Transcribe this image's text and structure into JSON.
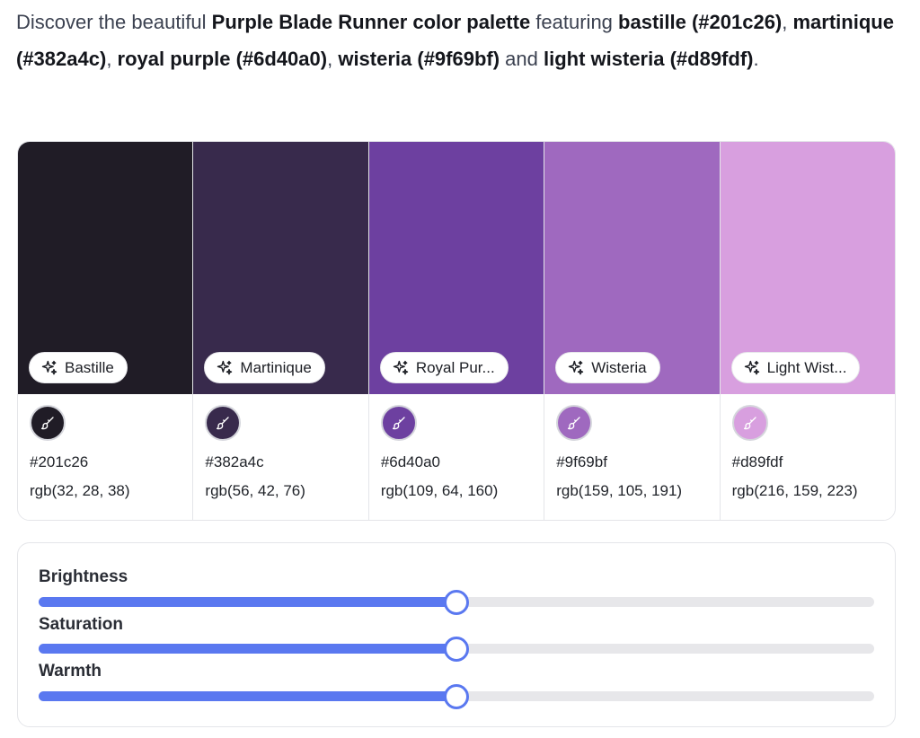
{
  "intro": {
    "t1": "Discover the beautiful ",
    "b1": "Purple Blade Runner color palette",
    "t2": " featuring ",
    "b2": "bastille (#201c26)",
    "t3": ", ",
    "b3": "martinique (#382a4c)",
    "t4": ", ",
    "b4": "royal purple (#6d40a0)",
    "t5": ", ",
    "b5": "wisteria (#9f69bf)",
    "t6": " and ",
    "b6": "light wisteria (#d89fdf)",
    "t7": "."
  },
  "colors": [
    {
      "name": "Bastille",
      "hex": "#201c26",
      "rgb": "rgb(32, 28, 38)"
    },
    {
      "name": "Martinique",
      "hex": "#382a4c",
      "rgb": "rgb(56, 42, 76)"
    },
    {
      "name": "Royal Pur...",
      "hex": "#6d40a0",
      "rgb": "rgb(109, 64, 160)"
    },
    {
      "name": "Wisteria",
      "hex": "#9f69bf",
      "rgb": "rgb(159, 105, 191)"
    },
    {
      "name": "Light Wist...",
      "hex": "#d89fdf",
      "rgb": "rgb(216, 159, 223)"
    }
  ],
  "icons": {
    "name_pill": "sparkle-icon",
    "color_dot": "paintbrush-icon"
  },
  "sliders": [
    {
      "label": "Brightness",
      "value": 0.5
    },
    {
      "label": "Saturation",
      "value": 0.5
    },
    {
      "label": "Warmth",
      "value": 0.5
    }
  ],
  "accent_color": "#5a78f0"
}
